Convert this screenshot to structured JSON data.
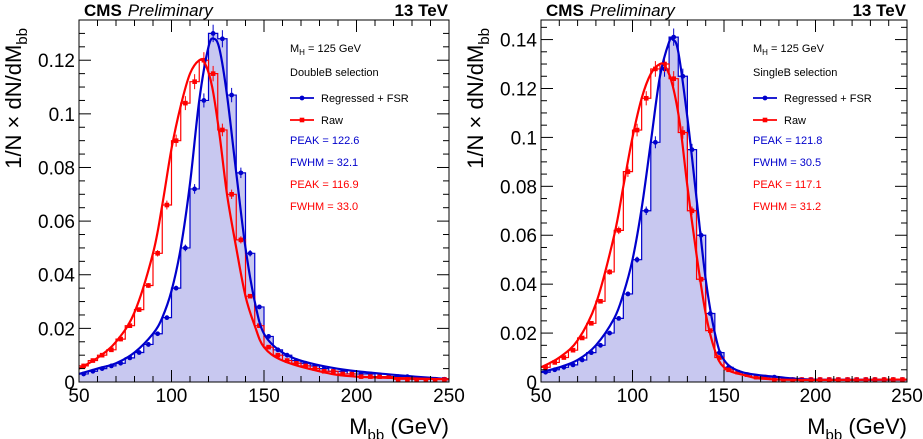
{
  "chart_data": [
    {
      "type": "line",
      "header": {
        "experiment": "CMS",
        "status": "Preliminary",
        "energy": "13 TeV"
      },
      "xlabel": {
        "main": "M",
        "sub": "bb",
        "unit": " (GeV)"
      },
      "ylabel": "1/N × dN/dM",
      "ylabel_sub": "bb",
      "xlim": [
        50,
        250
      ],
      "ylim": [
        0,
        0.135
      ],
      "xticks": [
        "50",
        "100",
        "150",
        "200",
        "250"
      ],
      "yticks": [
        "0",
        "0.02",
        "0.04",
        "0.06",
        "0.08",
        "0.1",
        "0.12"
      ],
      "grid": false,
      "legend_position": "top-right",
      "mass_label": {
        "main": "M",
        "sub": "H",
        "rest": " = 125 GeV"
      },
      "selection": "DoubleB selection",
      "series": [
        {
          "name": "Regressed + FSR",
          "color": "#0000cc",
          "fill": "#c8c8f0",
          "x": [
            50,
            55,
            60,
            65,
            70,
            75,
            80,
            85,
            90,
            95,
            100,
            105,
            110,
            115,
            120,
            125,
            130,
            135,
            140,
            145,
            150,
            155,
            160,
            165,
            170,
            175,
            180,
            185,
            190,
            195,
            200,
            205,
            210,
            215,
            220,
            225,
            230,
            235,
            240,
            245
          ],
          "values": [
            0.003,
            0.004,
            0.005,
            0.006,
            0.007,
            0.009,
            0.011,
            0.014,
            0.018,
            0.024,
            0.035,
            0.05,
            0.072,
            0.105,
            0.13,
            0.128,
            0.107,
            0.078,
            0.048,
            0.028,
            0.017,
            0.012,
            0.01,
            0.008,
            0.007,
            0.006,
            0.005,
            0.004,
            0.004,
            0.003,
            0.003,
            0.003,
            0.002,
            0.002,
            0.002,
            0.002,
            0.001,
            0.001,
            0.001,
            0.001
          ],
          "fit": [
            [
              50,
              0.003
            ],
            [
              60,
              0.005
            ],
            [
              70,
              0.007
            ],
            [
              80,
              0.011
            ],
            [
              90,
              0.018
            ],
            [
              95,
              0.024
            ],
            [
              100,
              0.034
            ],
            [
              105,
              0.05
            ],
            [
              110,
              0.074
            ],
            [
              115,
              0.105
            ],
            [
              120,
              0.125
            ],
            [
              123,
              0.128
            ],
            [
              126,
              0.124
            ],
            [
              130,
              0.107
            ],
            [
              135,
              0.078
            ],
            [
              140,
              0.05
            ],
            [
              145,
              0.03
            ],
            [
              150,
              0.018
            ],
            [
              160,
              0.011
            ],
            [
              175,
              0.007
            ],
            [
              200,
              0.004
            ],
            [
              250,
              0.001
            ]
          ]
        },
        {
          "name": "Raw",
          "color": "#ff0000",
          "x": [
            50,
            55,
            60,
            65,
            70,
            75,
            80,
            85,
            90,
            95,
            100,
            105,
            110,
            115,
            120,
            125,
            130,
            135,
            140,
            145,
            150,
            155,
            160,
            165,
            170,
            175,
            180,
            185,
            190,
            195,
            200,
            205,
            210,
            215,
            220,
            225,
            230,
            235,
            240,
            245
          ],
          "values": [
            0.006,
            0.008,
            0.01,
            0.012,
            0.016,
            0.021,
            0.027,
            0.036,
            0.048,
            0.066,
            0.09,
            0.104,
            0.112,
            0.12,
            0.115,
            0.094,
            0.07,
            0.053,
            0.032,
            0.021,
            0.013,
            0.01,
            0.008,
            0.007,
            0.006,
            0.005,
            0.004,
            0.004,
            0.003,
            0.003,
            0.002,
            0.002,
            0.002,
            0.002,
            0.001,
            0.001,
            0.001,
            0.001,
            0.001,
            0.001
          ],
          "fit": [
            [
              50,
              0.005
            ],
            [
              60,
              0.009
            ],
            [
              70,
              0.015
            ],
            [
              80,
              0.026
            ],
            [
              90,
              0.048
            ],
            [
              95,
              0.066
            ],
            [
              100,
              0.087
            ],
            [
              105,
              0.103
            ],
            [
              110,
              0.115
            ],
            [
              115,
              0.12
            ],
            [
              118,
              0.119
            ],
            [
              122,
              0.11
            ],
            [
              126,
              0.092
            ],
            [
              130,
              0.07
            ],
            [
              135,
              0.05
            ],
            [
              140,
              0.032
            ],
            [
              145,
              0.021
            ],
            [
              150,
              0.013
            ],
            [
              160,
              0.008
            ],
            [
              180,
              0.004
            ],
            [
              200,
              0.002
            ],
            [
              250,
              0.001
            ]
          ]
        }
      ],
      "annotations": [
        {
          "text": "PEAK = 122.6",
          "color": "#0000cc"
        },
        {
          "text": "FWHM = 32.1",
          "color": "#0000cc"
        },
        {
          "text": "PEAK = 116.9",
          "color": "#ff0000"
        },
        {
          "text": "FWHM = 33.0",
          "color": "#ff0000"
        }
      ]
    },
    {
      "type": "line",
      "header": {
        "experiment": "CMS",
        "status": "Preliminary",
        "energy": "13 TeV"
      },
      "xlabel": {
        "main": "M",
        "sub": "bb",
        "unit": " (GeV)"
      },
      "ylabel": "1/N × dN/dM",
      "ylabel_sub": "bb",
      "xlim": [
        50,
        250
      ],
      "ylim": [
        0,
        0.148
      ],
      "xticks": [
        "50",
        "100",
        "150",
        "200",
        "250"
      ],
      "yticks": [
        "0",
        "0.02",
        "0.04",
        "0.06",
        "0.08",
        "0.1",
        "0.12",
        "0.14"
      ],
      "grid": false,
      "legend_position": "top-right",
      "mass_label": {
        "main": "M",
        "sub": "H",
        "rest": " = 125 GeV"
      },
      "selection": "SingleB selection",
      "series": [
        {
          "name": "Regressed + FSR",
          "color": "#0000cc",
          "fill": "#c8c8f0",
          "x": [
            50,
            55,
            60,
            65,
            70,
            75,
            80,
            85,
            90,
            95,
            100,
            105,
            110,
            115,
            120,
            125,
            130,
            135,
            140,
            145,
            150,
            155,
            160,
            165,
            170,
            175,
            180,
            185,
            190,
            195,
            200,
            205,
            210,
            215,
            220,
            225,
            230,
            235,
            240,
            245
          ],
          "values": [
            0.004,
            0.005,
            0.006,
            0.007,
            0.009,
            0.012,
            0.015,
            0.02,
            0.026,
            0.036,
            0.05,
            0.07,
            0.098,
            0.128,
            0.141,
            0.125,
            0.095,
            0.06,
            0.028,
            0.012,
            0.006,
            0.004,
            0.003,
            0.002,
            0.002,
            0.002,
            0.001,
            0.001,
            0.001,
            0.001,
            0.001,
            0.001,
            0.001,
            0.001,
            0.001,
            0.001,
            0.001,
            0.001,
            0.001,
            0.001
          ],
          "fit": [
            [
              50,
              0.004
            ],
            [
              60,
              0.006
            ],
            [
              70,
              0.009
            ],
            [
              80,
              0.015
            ],
            [
              90,
              0.026
            ],
            [
              95,
              0.036
            ],
            [
              100,
              0.05
            ],
            [
              105,
              0.071
            ],
            [
              110,
              0.098
            ],
            [
              115,
              0.125
            ],
            [
              120,
              0.139
            ],
            [
              122,
              0.14
            ],
            [
              125,
              0.135
            ],
            [
              130,
              0.108
            ],
            [
              135,
              0.075
            ],
            [
              140,
              0.042
            ],
            [
              145,
              0.02
            ],
            [
              150,
              0.009
            ],
            [
              160,
              0.004
            ],
            [
              180,
              0.002
            ],
            [
              200,
              0.001
            ],
            [
              250,
              0.001
            ]
          ]
        },
        {
          "name": "Raw",
          "color": "#ff0000",
          "x": [
            50,
            55,
            60,
            65,
            70,
            75,
            80,
            85,
            90,
            95,
            100,
            105,
            110,
            115,
            120,
            125,
            130,
            135,
            140,
            145,
            150,
            155,
            160,
            165,
            170,
            175,
            180,
            185,
            190,
            195,
            200,
            205,
            210,
            215,
            220,
            225,
            230,
            235,
            240,
            245
          ],
          "values": [
            0.006,
            0.008,
            0.01,
            0.013,
            0.018,
            0.024,
            0.033,
            0.045,
            0.062,
            0.086,
            0.103,
            0.116,
            0.128,
            0.13,
            0.124,
            0.102,
            0.07,
            0.042,
            0.021,
            0.01,
            0.005,
            0.004,
            0.003,
            0.002,
            0.002,
            0.001,
            0.001,
            0.001,
            0.001,
            0.001,
            0.001,
            0.001,
            0.001,
            0.001,
            0.001,
            0.001,
            0.001,
            0.001,
            0.001,
            0.001
          ],
          "fit": [
            [
              50,
              0.006
            ],
            [
              60,
              0.01
            ],
            [
              70,
              0.017
            ],
            [
              80,
              0.032
            ],
            [
              90,
              0.06
            ],
            [
              95,
              0.08
            ],
            [
              100,
              0.1
            ],
            [
              105,
              0.116
            ],
            [
              110,
              0.126
            ],
            [
              115,
              0.13
            ],
            [
              118,
              0.129
            ],
            [
              122,
              0.121
            ],
            [
              126,
              0.105
            ],
            [
              130,
              0.08
            ],
            [
              135,
              0.052
            ],
            [
              140,
              0.028
            ],
            [
              145,
              0.013
            ],
            [
              150,
              0.006
            ],
            [
              160,
              0.003
            ],
            [
              180,
              0.001
            ],
            [
              250,
              0.001
            ]
          ]
        }
      ],
      "annotations": [
        {
          "text": "PEAK = 121.8",
          "color": "#0000cc"
        },
        {
          "text": "FWHM = 30.5",
          "color": "#0000cc"
        },
        {
          "text": "PEAK = 117.1",
          "color": "#ff0000"
        },
        {
          "text": "FWHM = 31.2",
          "color": "#ff0000"
        }
      ]
    }
  ]
}
